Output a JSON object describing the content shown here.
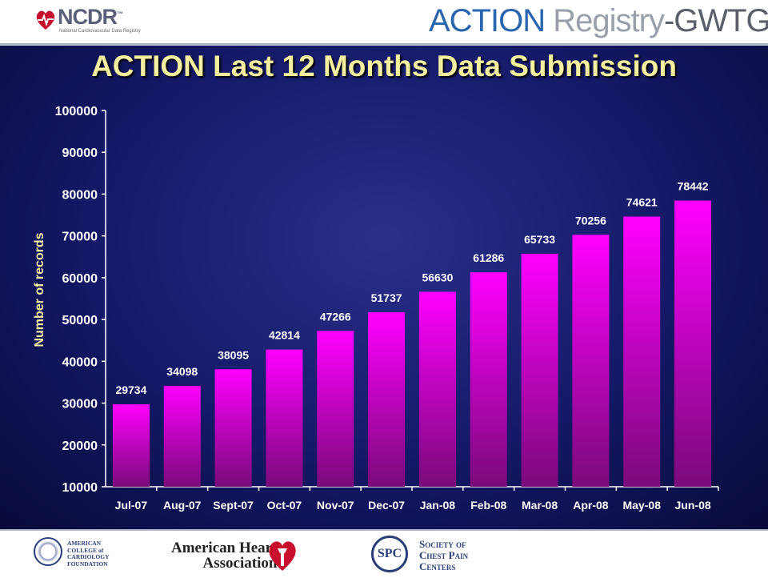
{
  "header": {
    "ncdr_title": "NCDR",
    "ncdr_tm": "™",
    "ncdr_subtitle": "National Cardiovascular Data Registry",
    "action_part1": "ACTION",
    "action_part2": " Registry",
    "action_part3": "-GWTG",
    "action_tm": "™"
  },
  "footer": {
    "acc_text": "AMERICAN\nCOLLEGE of\nCARDIOLOGY\nFOUNDATION",
    "aha_text": "American Heart\nAssociation",
    "scpc_seal": "SPC",
    "scpc_text": "Society of\nChest Pain\nCenters"
  },
  "colors": {
    "bar_top": "#ff00ff",
    "bar_bottom": "#800080",
    "title": "#f5f0a0"
  },
  "chart_data": {
    "type": "bar",
    "title": "ACTION Last 12 Months Data Submission",
    "xlabel": "",
    "ylabel": "Number of records",
    "ylim": [
      10000,
      100000
    ],
    "yticks": [
      10000,
      20000,
      30000,
      40000,
      50000,
      60000,
      70000,
      80000,
      90000,
      100000
    ],
    "categories": [
      "Jul-07",
      "Aug-07",
      "Sept-07",
      "Oct-07",
      "Nov-07",
      "Dec-07",
      "Jan-08",
      "Feb-08",
      "Mar-08",
      "Apr-08",
      "May-08",
      "Jun-08"
    ],
    "values": [
      29734,
      34098,
      38095,
      42814,
      47266,
      51737,
      56630,
      61286,
      65733,
      70256,
      74621,
      78442
    ],
    "grid": false,
    "legend": "none"
  }
}
